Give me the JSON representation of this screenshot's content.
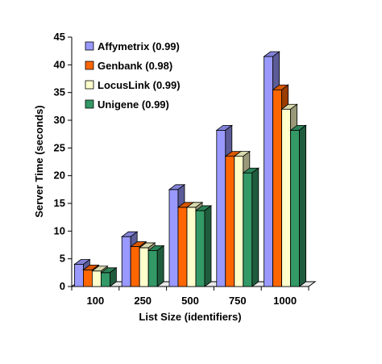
{
  "chart_data": {
    "type": "bar",
    "style": "3d-clustered-column",
    "xlabel": "List Size (identifiers)",
    "ylabel": "Server Time (seconds)",
    "ylim": [
      0,
      45
    ],
    "y_tick_step": 5,
    "categories": [
      "100",
      "250",
      "500",
      "750",
      "1000"
    ],
    "series": [
      {
        "name": "Affymetrix",
        "legend_label": "Affymetrix  (0.99)",
        "color": "#9999ff",
        "values": [
          4.0,
          9.0,
          17.5,
          28.2,
          41.5
        ]
      },
      {
        "name": "Genbank",
        "legend_label": "Genbank  (0.98)",
        "color": "#ff6600",
        "values": [
          3.0,
          7.2,
          14.3,
          23.5,
          35.5
        ]
      },
      {
        "name": "LocusLink",
        "legend_label": "LocusLink  (0.99)",
        "color": "#ffffcc",
        "values": [
          2.8,
          7.0,
          14.3,
          23.5,
          32.0
        ]
      },
      {
        "name": "Unigene",
        "legend_label": "Unigene  (0.99)",
        "color": "#339966",
        "values": [
          2.5,
          6.5,
          13.7,
          20.5,
          28.2
        ]
      }
    ],
    "legend_position": "top-left",
    "grid": false
  }
}
